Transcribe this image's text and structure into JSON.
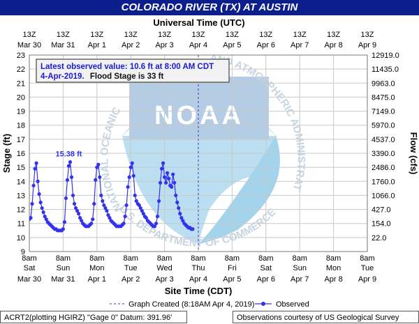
{
  "header": {
    "title": "COLORADO RIVER (TX) AT AUSTIN"
  },
  "chart_data": {
    "type": "line",
    "title": "COLORADO RIVER (TX) AT AUSTIN",
    "top_axis_title": "Universal Time (UTC)",
    "xlabel": "Site Time (CDT)",
    "ylabel": "Stage (ft)",
    "y2label": "Flow (cfs)",
    "ylim": [
      9,
      23
    ],
    "yticks": [
      "9",
      "10",
      "11",
      "12",
      "13",
      "14",
      "15",
      "16",
      "17",
      "18",
      "19",
      "20",
      "21",
      "22",
      "23"
    ],
    "flow_ticks": [
      {
        "stage": 10,
        "label": "22.0"
      },
      {
        "stage": 11,
        "label": "154.0"
      },
      {
        "stage": 12,
        "label": "427.0"
      },
      {
        "stage": 13,
        "label": "1066.0"
      },
      {
        "stage": 14,
        "label": "1760.0"
      },
      {
        "stage": 15,
        "label": "2486.0"
      },
      {
        "stage": 16,
        "label": "3390.0"
      },
      {
        "stage": 17,
        "label": "4537.0"
      },
      {
        "stage": 18,
        "label": "5970.0"
      },
      {
        "stage": 19,
        "label": "7149.0"
      },
      {
        "stage": 20,
        "label": "8475.0"
      },
      {
        "stage": 21,
        "label": "9963.0"
      },
      {
        "stage": 22,
        "label": "11435.0"
      },
      {
        "stage": 23,
        "label": "12919.0"
      }
    ],
    "x_ticks": [
      {
        "t": "8am",
        "d": "Sat",
        "m": "Mar 30"
      },
      {
        "t": "8am",
        "d": "Sun",
        "m": "Mar 31"
      },
      {
        "t": "8am",
        "d": "Mon",
        "m": "Apr 1"
      },
      {
        "t": "8am",
        "d": "Tue",
        "m": "Apr 2"
      },
      {
        "t": "8am",
        "d": "Wed",
        "m": "Apr 3"
      },
      {
        "t": "8am",
        "d": "Thu",
        "m": "Apr 4"
      },
      {
        "t": "8am",
        "d": "Fri",
        "m": "Apr 5"
      },
      {
        "t": "8am",
        "d": "Sat",
        "m": "Apr 6"
      },
      {
        "t": "8am",
        "d": "Sun",
        "m": "Apr 7"
      },
      {
        "t": "8am",
        "d": "Mon",
        "m": "Apr 8"
      },
      {
        "t": "8am",
        "d": "Tue",
        "m": "Apr 9"
      }
    ],
    "utc_ticks": [
      {
        "t": "13Z",
        "m": "Mar 30"
      },
      {
        "t": "13Z",
        "m": "Mar 31"
      },
      {
        "t": "13Z",
        "m": "Apr 1"
      },
      {
        "t": "13Z",
        "m": "Apr 2"
      },
      {
        "t": "13Z",
        "m": "Apr 3"
      },
      {
        "t": "13Z",
        "m": "Apr 4"
      },
      {
        "t": "13Z",
        "m": "Apr 5"
      },
      {
        "t": "13Z",
        "m": "Apr 6"
      },
      {
        "t": "13Z",
        "m": "Apr 7"
      },
      {
        "t": "13Z",
        "m": "Apr 8"
      },
      {
        "t": "13Z",
        "m": "Apr 9"
      }
    ],
    "series": [
      {
        "name": "Observed",
        "color": "#3333ee",
        "points": [
          [
            "Mar 30 8:00",
            11.3
          ],
          [
            "Mar 30 9:00",
            11.4
          ],
          [
            "Mar 30 10:00",
            12.4
          ],
          [
            "Mar 30 11:00",
            13.7
          ],
          [
            "Mar 30 12:00",
            14.9
          ],
          [
            "Mar 30 13:00",
            15.3
          ],
          [
            "Mar 30 14:00",
            14.0
          ],
          [
            "Mar 30 15:00",
            13.1
          ],
          [
            "Mar 30 16:00",
            12.5
          ],
          [
            "Mar 30 17:00",
            12.1
          ],
          [
            "Mar 30 18:00",
            11.8
          ],
          [
            "Mar 30 19:00",
            11.5
          ],
          [
            "Mar 30 20:00",
            11.3
          ],
          [
            "Mar 30 21:00",
            11.1
          ],
          [
            "Mar 30 22:00",
            11.0
          ],
          [
            "Mar 30 23:00",
            10.9
          ],
          [
            "Mar 31 0:00",
            10.8
          ],
          [
            "Mar 31 1:00",
            10.7
          ],
          [
            "Mar 31 2:00",
            10.6
          ],
          [
            "Mar 31 3:00",
            10.6
          ],
          [
            "Mar 31 4:00",
            10.5
          ],
          [
            "Mar 31 5:00",
            10.5
          ],
          [
            "Mar 31 6:00",
            10.5
          ],
          [
            "Mar 31 7:00",
            10.5
          ],
          [
            "Mar 31 8:00",
            10.6
          ],
          [
            "Mar 31 9:00",
            11.1
          ],
          [
            "Mar 31 10:00",
            12.8
          ],
          [
            "Mar 31 11:00",
            14.1
          ],
          [
            "Mar 31 12:00",
            15.1
          ],
          [
            "Mar 31 13:00",
            15.38
          ],
          [
            "Mar 31 14:00",
            14.3
          ],
          [
            "Mar 31 15:00",
            13.0
          ],
          [
            "Mar 31 16:00",
            12.4
          ],
          [
            "Mar 31 17:00",
            12.1
          ],
          [
            "Mar 31 18:00",
            11.9
          ],
          [
            "Mar 31 19:00",
            11.7
          ],
          [
            "Mar 31 20:00",
            11.4
          ],
          [
            "Mar 31 21:00",
            11.2
          ],
          [
            "Mar 31 22:00",
            11.0
          ],
          [
            "Mar 31 23:00",
            10.9
          ],
          [
            "Apr 1 0:00",
            10.8
          ],
          [
            "Apr 1 1:00",
            10.8
          ],
          [
            "Apr 1 2:00",
            10.8
          ],
          [
            "Apr 1 3:00",
            10.9
          ],
          [
            "Apr 1 4:00",
            11.0
          ],
          [
            "Apr 1 5:00",
            11.3
          ],
          [
            "Apr 1 6:00",
            12.4
          ],
          [
            "Apr 1 7:00",
            14.1
          ],
          [
            "Apr 1 8:00",
            15.0
          ],
          [
            "Apr 1 9:00",
            15.2
          ],
          [
            "Apr 1 10:00",
            14.3
          ],
          [
            "Apr 1 11:00",
            13.0
          ],
          [
            "Apr 1 12:00",
            12.6
          ],
          [
            "Apr 1 13:00",
            12.3
          ],
          [
            "Apr 1 14:00",
            12.1
          ],
          [
            "Apr 1 15:00",
            11.9
          ],
          [
            "Apr 1 16:00",
            11.6
          ],
          [
            "Apr 1 17:00",
            11.4
          ],
          [
            "Apr 1 18:00",
            11.2
          ],
          [
            "Apr 1 19:00",
            11.1
          ],
          [
            "Apr 1 20:00",
            11.0
          ],
          [
            "Apr 1 21:00",
            10.9
          ],
          [
            "Apr 1 22:00",
            10.8
          ],
          [
            "Apr 1 23:00",
            10.8
          ],
          [
            "Apr 2 0:00",
            10.8
          ],
          [
            "Apr 2 1:00",
            10.8
          ],
          [
            "Apr 2 2:00",
            10.9
          ],
          [
            "Apr 2 3:00",
            11.0
          ],
          [
            "Apr 2 4:00",
            11.5
          ],
          [
            "Apr 2 5:00",
            12.3
          ],
          [
            "Apr 2 6:00",
            13.6
          ],
          [
            "Apr 2 7:00",
            14.3
          ],
          [
            "Apr 2 8:00",
            15.0
          ],
          [
            "Apr 2 9:00",
            15.3
          ],
          [
            "Apr 2 10:00",
            14.4
          ],
          [
            "Apr 2 11:00",
            13.0
          ],
          [
            "Apr 2 12:00",
            12.6
          ],
          [
            "Apr 2 13:00",
            12.4
          ],
          [
            "Apr 2 14:00",
            12.3
          ],
          [
            "Apr 2 15:00",
            12.1
          ],
          [
            "Apr 2 16:00",
            11.9
          ],
          [
            "Apr 2 17:00",
            11.7
          ],
          [
            "Apr 2 18:00",
            11.5
          ],
          [
            "Apr 2 19:00",
            11.4
          ],
          [
            "Apr 2 20:00",
            11.2
          ],
          [
            "Apr 2 21:00",
            11.1
          ],
          [
            "Apr 2 22:00",
            11.0
          ],
          [
            "Apr 2 23:00",
            10.9
          ],
          [
            "Apr 3 0:00",
            10.8
          ],
          [
            "Apr 3 1:00",
            10.8
          ],
          [
            "Apr 3 2:00",
            11.0
          ],
          [
            "Apr 3 3:00",
            11.5
          ],
          [
            "Apr 3 4:00",
            12.6
          ],
          [
            "Apr 3 5:00",
            13.9
          ],
          [
            "Apr 3 6:00",
            14.9
          ],
          [
            "Apr 3 7:00",
            15.3
          ],
          [
            "Apr 3 8:00",
            14.3
          ],
          [
            "Apr 3 9:00",
            13.9
          ],
          [
            "Apr 3 10:00",
            14.6
          ],
          [
            "Apr 3 11:00",
            14.2
          ],
          [
            "Apr 3 12:00",
            13.7
          ],
          [
            "Apr 3 13:00",
            13.6
          ],
          [
            "Apr 3 14:00",
            14.5
          ],
          [
            "Apr 3 15:00",
            13.9
          ],
          [
            "Apr 3 16:00",
            13.0
          ],
          [
            "Apr 3 17:00",
            12.5
          ],
          [
            "Apr 3 18:00",
            12.1
          ],
          [
            "Apr 3 19:00",
            11.7
          ],
          [
            "Apr 3 20:00",
            11.4
          ],
          [
            "Apr 3 21:00",
            11.2
          ],
          [
            "Apr 3 22:00",
            11.0
          ],
          [
            "Apr 3 23:00",
            10.9
          ],
          [
            "Apr 4 0:00",
            10.8
          ],
          [
            "Apr 4 1:00",
            10.7
          ],
          [
            "Apr 4 2:00",
            10.7
          ],
          [
            "Apr 4 3:00",
            10.6
          ],
          [
            "Apr 4 4:00",
            10.6
          ]
        ]
      }
    ],
    "annotations": [
      {
        "text": "15.38 ft",
        "at": [
          "Mar 31 13:00",
          15.38
        ]
      }
    ],
    "graph_created_marker": "Apr 4 8:00",
    "legend_position": "bottom"
  },
  "info_box": {
    "line1": "Latest observed value: 10.6 ft at 8:00 AM CDT",
    "line2a": "4-Apr-2019.",
    "line2b": "Flood Stage is 33 ft"
  },
  "legend": {
    "graph_created": "Graph Created (8:18AM Apr 4, 2019)",
    "observed": "Observed"
  },
  "watermark": {
    "emblem": "noaa-logo",
    "text_left": "NATIONAL OCEANIC",
    "text_right": "AND ATMOSPHERIC ADMINISTRATION",
    "text_bottom": "U.S. DEPARTMENT OF COMMERCE",
    "logo_text": "NOAA"
  },
  "footer": {
    "left": "ACRT2(plotting HGIRZ) \"Gage 0\" Datum: 391.96'",
    "right": "Observations courtesy of US Geological Survey"
  },
  "colors": {
    "header_bg": "#0b1e8c",
    "series": "#3333ee",
    "info_text": "#1a1ad6",
    "grid": "#c8c8c8"
  }
}
